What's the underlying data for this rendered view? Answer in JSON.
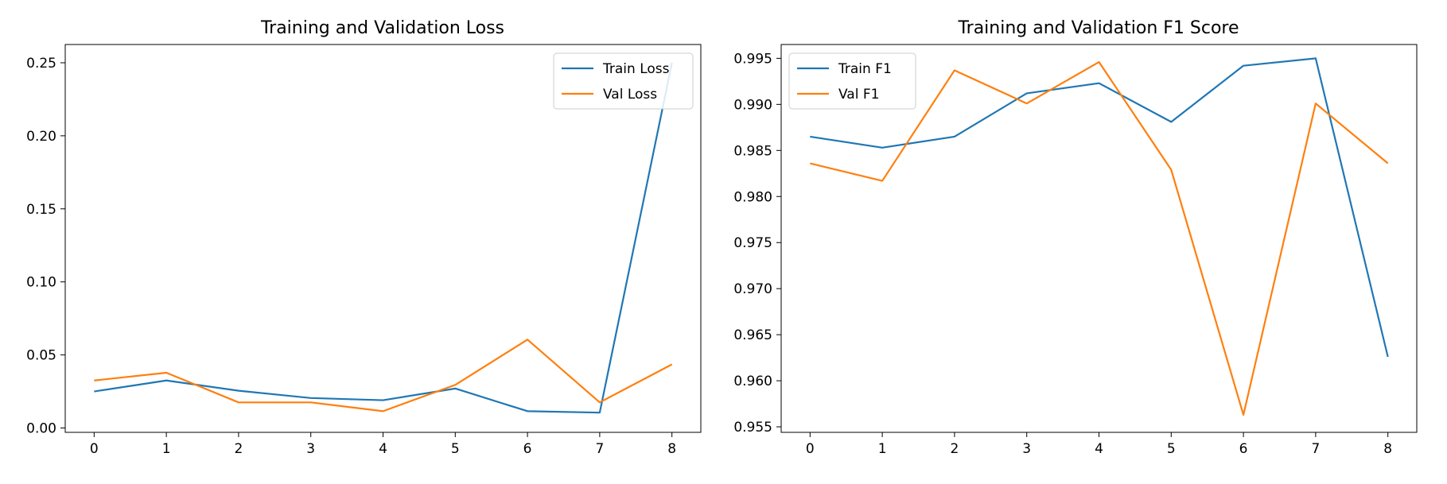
{
  "chart_data": [
    {
      "type": "line",
      "title": "Training and Validation Loss",
      "xlabel": "",
      "ylabel": "",
      "x": [
        0,
        1,
        2,
        3,
        4,
        5,
        6,
        7,
        8
      ],
      "xlim": [
        -0.4,
        8.4
      ],
      "ylim": [
        -0.003,
        0.2625
      ],
      "xticks": [
        "0",
        "1",
        "2",
        "3",
        "4",
        "5",
        "6",
        "7",
        "8"
      ],
      "yticks": [
        "0.00",
        "0.05",
        "0.10",
        "0.15",
        "0.20",
        "0.25"
      ],
      "ytick_values": [
        0.0,
        0.05,
        0.1,
        0.15,
        0.2,
        0.25
      ],
      "grid": false,
      "legend": "top-right",
      "series": [
        {
          "name": "Train Loss",
          "color": "#1f77b4",
          "values": [
            0.025,
            0.0325,
            0.0255,
            0.0205,
            0.019,
            0.027,
            0.0115,
            0.0105,
            0.25
          ]
        },
        {
          "name": "Val Loss",
          "color": "#ff7f0e",
          "values": [
            0.0325,
            0.0378,
            0.0175,
            0.0175,
            0.0115,
            0.0295,
            0.0605,
            0.0175,
            0.0435
          ]
        }
      ]
    },
    {
      "type": "line",
      "title": "Training and Validation F1 Score",
      "xlabel": "",
      "ylabel": "",
      "x": [
        0,
        1,
        2,
        3,
        4,
        5,
        6,
        7,
        8
      ],
      "xlim": [
        -0.4,
        8.4
      ],
      "ylim": [
        0.9544,
        0.9965
      ],
      "xticks": [
        "0",
        "1",
        "2",
        "3",
        "4",
        "5",
        "6",
        "7",
        "8"
      ],
      "yticks": [
        "0.955",
        "0.960",
        "0.965",
        "0.970",
        "0.975",
        "0.980",
        "0.985",
        "0.990",
        "0.995"
      ],
      "ytick_values": [
        0.955,
        0.96,
        0.965,
        0.97,
        0.975,
        0.98,
        0.985,
        0.99,
        0.995
      ],
      "grid": false,
      "legend": "top-left",
      "series": [
        {
          "name": "Train F1",
          "color": "#1f77b4",
          "values": [
            0.9865,
            0.9853,
            0.9865,
            0.9912,
            0.9923,
            0.9881,
            0.9942,
            0.995,
            0.9626
          ]
        },
        {
          "name": "Val F1",
          "color": "#ff7f0e",
          "values": [
            0.9836,
            0.9817,
            0.9937,
            0.9901,
            0.9946,
            0.9829,
            0.9563,
            0.9901,
            0.9836
          ]
        }
      ]
    }
  ]
}
